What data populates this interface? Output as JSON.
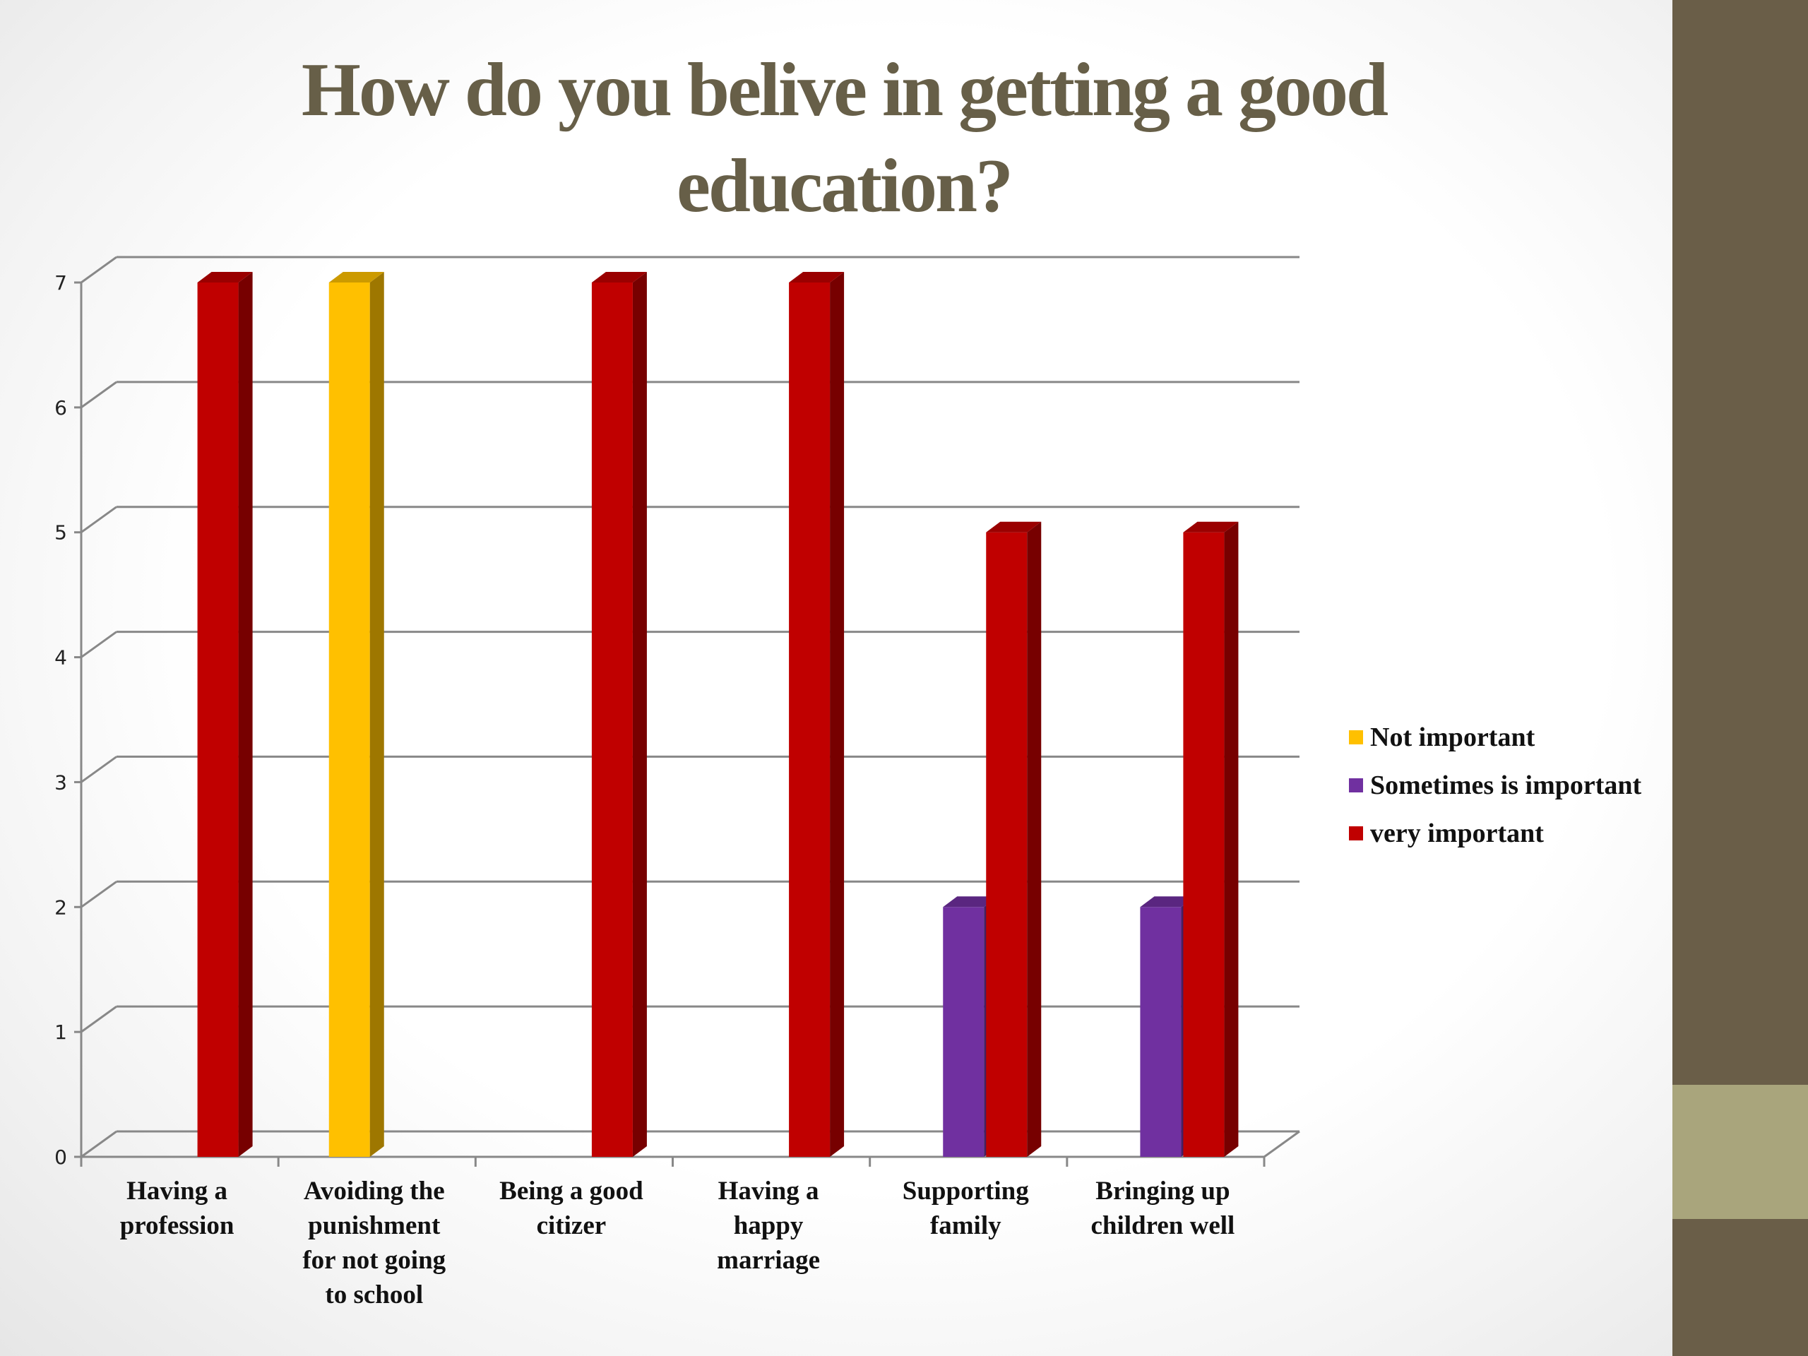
{
  "title_lines": [
    "How do you belive in getting a good",
    "education?"
  ],
  "colors": {
    "not_important": "#ffc000",
    "sometimes_important": "#7030a0",
    "very_important": "#c00000",
    "side_bar": "#6a5e48",
    "side_accent": "#a9a57c",
    "title": "#675f48"
  },
  "chart_data": {
    "type": "bar",
    "title": "How do you belive in getting a good education?",
    "xlabel": "",
    "ylabel": "",
    "ylim": [
      0,
      7
    ],
    "yticks": [
      0,
      1,
      2,
      3,
      4,
      5,
      6,
      7
    ],
    "grid": true,
    "legend_position": "right",
    "categories": [
      [
        "Having a",
        "profession"
      ],
      [
        "Avoiding the",
        "punishment",
        "for not going",
        "to school"
      ],
      [
        "Being a good",
        "citizer"
      ],
      [
        "Having a",
        "happy",
        "marriage"
      ],
      [
        "Supporting",
        "family"
      ],
      [
        "Bringing up",
        "children well"
      ]
    ],
    "series": [
      {
        "name": "Not important",
        "color": "#ffc000",
        "values": [
          0,
          7,
          0,
          0,
          0,
          0
        ]
      },
      {
        "name": "Sometimes is important",
        "color": "#7030a0",
        "values": [
          0,
          0,
          0,
          0,
          2,
          2
        ]
      },
      {
        "name": "very important",
        "color": "#c00000",
        "values": [
          7,
          0,
          7,
          7,
          5,
          5
        ]
      }
    ]
  }
}
